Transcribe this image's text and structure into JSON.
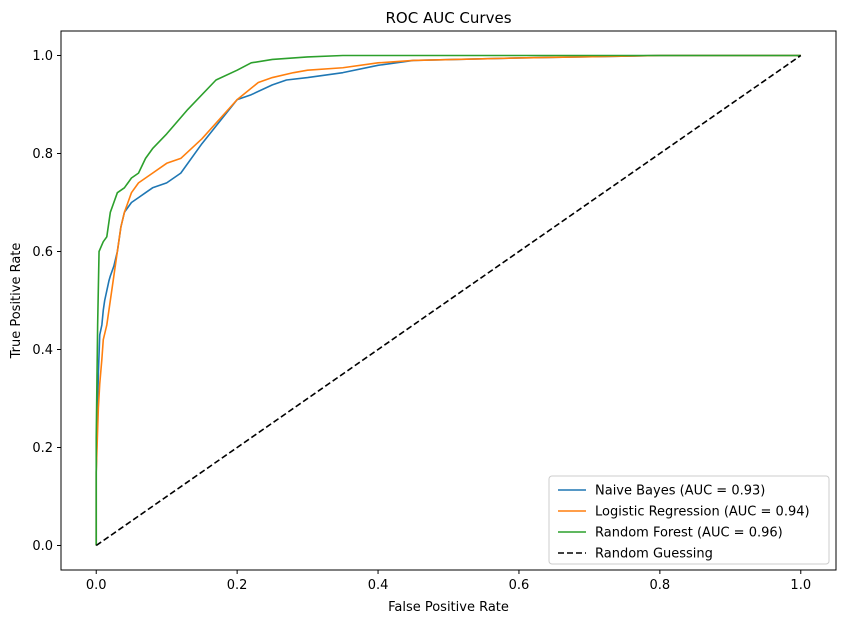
{
  "chart_data": {
    "type": "line",
    "title": "ROC AUC Curves",
    "xlabel": "False Positive Rate",
    "ylabel": "True Positive Rate",
    "xlim": [
      -0.05,
      1.05
    ],
    "ylim": [
      -0.05,
      1.05
    ],
    "xticks": [
      "0.0",
      "0.2",
      "0.4",
      "0.6",
      "0.8",
      "1.0"
    ],
    "yticks": [
      "0.0",
      "0.2",
      "0.4",
      "0.6",
      "0.8",
      "1.0"
    ],
    "grid": false,
    "legend_position": "lower right",
    "series": [
      {
        "name": "Naive Bayes (AUC = 0.93)",
        "color": "#1f77b4",
        "style": "solid",
        "x": [
          0,
          0.0,
          0.003,
          0.005,
          0.008,
          0.01,
          0.012,
          0.015,
          0.018,
          0.02,
          0.025,
          0.03,
          0.035,
          0.04,
          0.045,
          0.05,
          0.06,
          0.07,
          0.08,
          0.1,
          0.12,
          0.15,
          0.2,
          0.22,
          0.25,
          0.27,
          0.3,
          0.35,
          0.4,
          0.45,
          0.6,
          0.8,
          1.0
        ],
        "y": [
          0,
          0.15,
          0.35,
          0.43,
          0.45,
          0.48,
          0.5,
          0.52,
          0.54,
          0.55,
          0.57,
          0.6,
          0.65,
          0.68,
          0.69,
          0.7,
          0.71,
          0.72,
          0.73,
          0.74,
          0.76,
          0.82,
          0.91,
          0.92,
          0.94,
          0.95,
          0.955,
          0.965,
          0.98,
          0.99,
          0.995,
          1.0,
          1.0
        ]
      },
      {
        "name": "Logistic Regression (AUC = 0.94)",
        "color": "#ff7f0e",
        "style": "solid",
        "x": [
          0,
          0.0,
          0.003,
          0.005,
          0.008,
          0.01,
          0.015,
          0.02,
          0.025,
          0.03,
          0.035,
          0.04,
          0.045,
          0.05,
          0.06,
          0.07,
          0.08,
          0.1,
          0.12,
          0.15,
          0.2,
          0.23,
          0.25,
          0.28,
          0.3,
          0.35,
          0.4,
          0.45,
          0.6,
          0.8,
          1.0
        ],
        "y": [
          0,
          0.15,
          0.28,
          0.33,
          0.38,
          0.42,
          0.45,
          0.5,
          0.55,
          0.6,
          0.65,
          0.68,
          0.7,
          0.72,
          0.74,
          0.75,
          0.76,
          0.78,
          0.79,
          0.83,
          0.91,
          0.945,
          0.955,
          0.965,
          0.97,
          0.975,
          0.985,
          0.99,
          0.995,
          1.0,
          1.0
        ]
      },
      {
        "name": "Random Forest (AUC = 0.96)",
        "color": "#2ca02c",
        "style": "solid",
        "x": [
          0,
          0.0,
          0.002,
          0.004,
          0.007,
          0.01,
          0.015,
          0.02,
          0.025,
          0.03,
          0.04,
          0.05,
          0.06,
          0.07,
          0.08,
          0.1,
          0.13,
          0.17,
          0.2,
          0.22,
          0.25,
          0.3,
          0.35,
          0.45,
          0.6,
          0.8,
          1.0
        ],
        "y": [
          0,
          0.22,
          0.45,
          0.6,
          0.61,
          0.62,
          0.63,
          0.68,
          0.7,
          0.72,
          0.73,
          0.75,
          0.76,
          0.79,
          0.81,
          0.84,
          0.89,
          0.95,
          0.97,
          0.985,
          0.992,
          0.997,
          1.0,
          1.0,
          1.0,
          1.0,
          1.0
        ]
      },
      {
        "name": "Random Guessing",
        "color": "#000000",
        "style": "dashed",
        "x": [
          0,
          1
        ],
        "y": [
          0,
          1
        ]
      }
    ]
  }
}
